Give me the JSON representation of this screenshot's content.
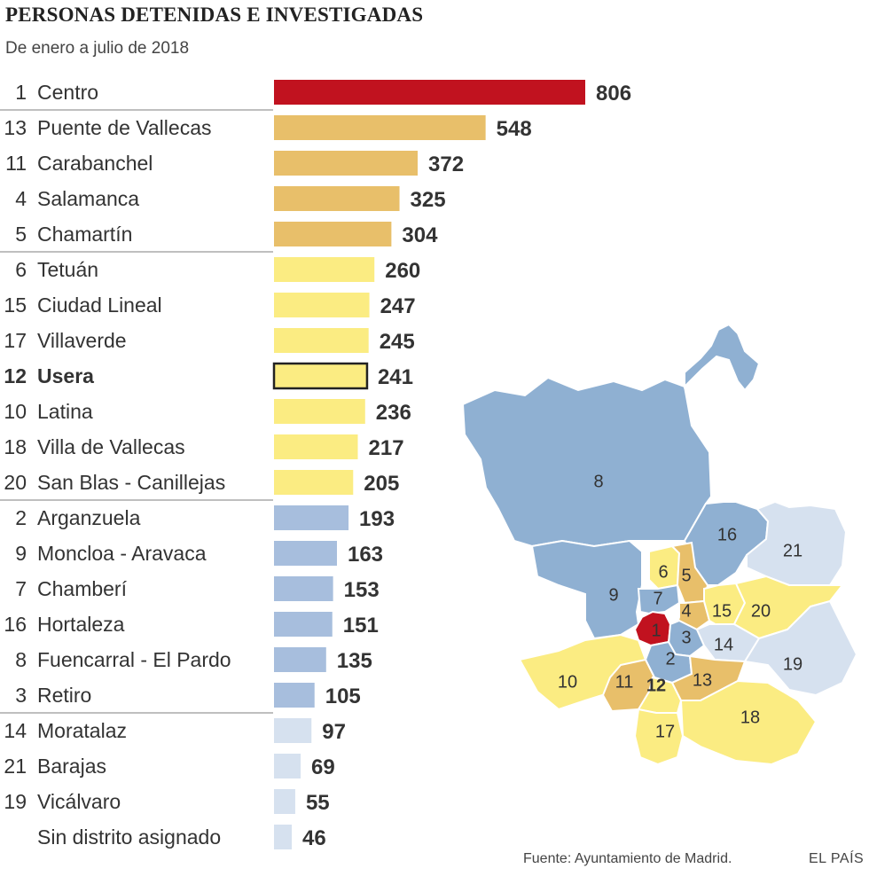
{
  "title": "PERSONAS DETENIDAS E INVESTIGADAS",
  "subtitle": "De enero a julio de 2018",
  "source": "Fuente: Ayuntamiento de Madrid.",
  "brand": "EL PAÍS",
  "colors": {
    "top": "#c1121f",
    "high": "#e8bf6a",
    "mid": "#fbec82",
    "low": "#a7bedd",
    "lowest": "#d6e1ef",
    "map_low": "#8fb0d2",
    "separator": "#999999",
    "highlight_border": "#222222"
  },
  "chart_data": {
    "type": "bar",
    "orientation": "horizontal",
    "title": "PERSONAS DETENIDAS E INVESTIGADAS",
    "subtitle": "De enero a julio de 2018",
    "xlim": [
      0,
      806
    ],
    "categories": [
      "Centro",
      "Puente de Vallecas",
      "Carabanchel",
      "Salamanca",
      "Chamartín",
      "Tetuán",
      "Ciudad Lineal",
      "Villaverde",
      "Usera",
      "Latina",
      "Villa de Vallecas",
      "San Blas - Canillejas",
      "Arganzuela",
      "Moncloa - Aravaca",
      "Chamberí",
      "Hortaleza",
      "Fuencarral - El Pardo",
      "Retiro",
      "Moratalaz",
      "Barajas",
      "Vicálvaro",
      "Sin distrito asignado"
    ],
    "ranks": [
      "1",
      "13",
      "11",
      "4",
      "5",
      "6",
      "15",
      "17",
      "12",
      "10",
      "18",
      "20",
      "2",
      "9",
      "7",
      "16",
      "8",
      "3",
      "14",
      "21",
      "19",
      ""
    ],
    "values": [
      806,
      548,
      372,
      325,
      304,
      260,
      247,
      245,
      241,
      236,
      217,
      205,
      193,
      163,
      153,
      151,
      135,
      105,
      97,
      69,
      55,
      46
    ],
    "color_group": [
      "top",
      "high",
      "high",
      "high",
      "high",
      "mid",
      "mid",
      "mid",
      "mid",
      "mid",
      "mid",
      "mid",
      "low",
      "low",
      "low",
      "low",
      "low",
      "low",
      "lowest",
      "lowest",
      "lowest",
      "lowest"
    ],
    "highlighted": "Usera",
    "group_separators_after": [
      "Centro",
      "Chamartín",
      "San Blas - Canillejas",
      "Retiro"
    ]
  },
  "map": {
    "districts": [
      {
        "label": "8",
        "group": "map_low"
      },
      {
        "label": "16",
        "group": "map_low"
      },
      {
        "label": "21",
        "group": "lowest"
      },
      {
        "label": "9",
        "group": "map_low"
      },
      {
        "label": "6",
        "group": "mid"
      },
      {
        "label": "5",
        "group": "high"
      },
      {
        "label": "7",
        "group": "map_low"
      },
      {
        "label": "4",
        "group": "high"
      },
      {
        "label": "15",
        "group": "mid"
      },
      {
        "label": "20",
        "group": "mid"
      },
      {
        "label": "1",
        "group": "top"
      },
      {
        "label": "3",
        "group": "map_low"
      },
      {
        "label": "14",
        "group": "lowest"
      },
      {
        "label": "19",
        "group": "lowest"
      },
      {
        "label": "2",
        "group": "map_low"
      },
      {
        "label": "10",
        "group": "mid"
      },
      {
        "label": "11",
        "group": "high"
      },
      {
        "label": "12",
        "group": "mid"
      },
      {
        "label": "13",
        "group": "high"
      },
      {
        "label": "17",
        "group": "mid"
      },
      {
        "label": "18",
        "group": "mid"
      }
    ]
  }
}
